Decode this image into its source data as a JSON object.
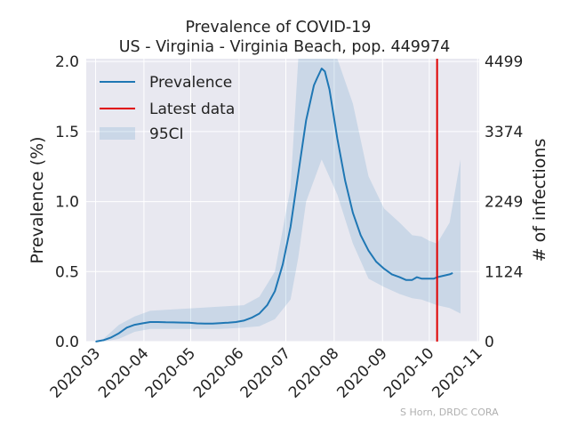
{
  "chart_data": {
    "type": "line",
    "title_line1": "Prevalence of COVID-19",
    "title_line2": "US - Virginia - Virginia Beach, pop. 449974",
    "xlabel": "",
    "ylabel": "Prevalence (%)",
    "ylabel_right": "# of infections",
    "ylim": [
      0,
      2.02
    ],
    "xlim": [
      "2020-02-24",
      "2020-11-02"
    ],
    "x_ticks": [
      "2020-03",
      "2020-04",
      "2020-05",
      "2020-06",
      "2020-07",
      "2020-08",
      "2020-09",
      "2020-10",
      "2020-11"
    ],
    "y_ticks": [
      {
        "value": 0.0,
        "label": "0.0"
      },
      {
        "value": 0.5,
        "label": "0.5"
      },
      {
        "value": 1.0,
        "label": "1.0"
      },
      {
        "value": 1.5,
        "label": "1.5"
      },
      {
        "value": 2.0,
        "label": "2.0"
      }
    ],
    "y_right_ticks": [
      {
        "value": 0.0,
        "label": "0"
      },
      {
        "value": 0.4995,
        "label": "1124"
      },
      {
        "value": 0.9995,
        "label": "2249"
      },
      {
        "value": 1.4998,
        "label": "3374"
      },
      {
        "value": 1.9996,
        "label": "4499"
      }
    ],
    "grid": true,
    "legend_position": "top-left",
    "legend": [
      {
        "label": "Prevalence",
        "kind": "line",
        "color": "#1f77b4"
      },
      {
        "label": "Latest data",
        "kind": "line",
        "color": "#e00000"
      },
      {
        "label": "95CI",
        "kind": "patch",
        "color": "#1f77b4"
      }
    ],
    "latest_data_date": "2020-10-06",
    "colors": {
      "prevalence": "#1f77b4",
      "latest": "#e00000",
      "ci": "#1f77b4",
      "plot_bg": "#e8e8f0",
      "grid": "#ffffff"
    },
    "series": [
      {
        "name": "Prevalence",
        "x": [
          "2020-03-01",
          "2020-03-06",
          "2020-03-11",
          "2020-03-16",
          "2020-03-21",
          "2020-03-26",
          "2020-03-31",
          "2020-04-05",
          "2020-04-10",
          "2020-04-15",
          "2020-04-20",
          "2020-04-25",
          "2020-04-30",
          "2020-05-05",
          "2020-05-10",
          "2020-05-15",
          "2020-05-20",
          "2020-05-25",
          "2020-05-30",
          "2020-06-04",
          "2020-06-09",
          "2020-06-14",
          "2020-06-19",
          "2020-06-24",
          "2020-06-29",
          "2020-07-04",
          "2020-07-09",
          "2020-07-14",
          "2020-07-19",
          "2020-07-21",
          "2020-07-24",
          "2020-07-26",
          "2020-07-29",
          "2020-08-03",
          "2020-08-08",
          "2020-08-13",
          "2020-08-18",
          "2020-08-23",
          "2020-08-28",
          "2020-09-02",
          "2020-09-07",
          "2020-09-12",
          "2020-09-16",
          "2020-09-20",
          "2020-09-23",
          "2020-09-26",
          "2020-10-01",
          "2020-10-04",
          "2020-10-06",
          "2020-10-10",
          "2020-10-14",
          "2020-10-16"
        ],
        "values": [
          0.0,
          0.01,
          0.03,
          0.06,
          0.1,
          0.12,
          0.13,
          0.14,
          0.14,
          0.138,
          0.137,
          0.136,
          0.135,
          0.13,
          0.128,
          0.128,
          0.132,
          0.135,
          0.14,
          0.15,
          0.17,
          0.2,
          0.26,
          0.36,
          0.55,
          0.82,
          1.2,
          1.58,
          1.83,
          1.88,
          1.95,
          1.93,
          1.8,
          1.45,
          1.15,
          0.92,
          0.76,
          0.65,
          0.57,
          0.52,
          0.48,
          0.46,
          0.44,
          0.44,
          0.46,
          0.45,
          0.45,
          0.45,
          0.46,
          0.47,
          0.48,
          0.49
        ]
      }
    ],
    "ci": {
      "x": [
        "2020-03-06",
        "2020-03-16",
        "2020-03-26",
        "2020-04-05",
        "2020-04-20",
        "2020-05-05",
        "2020-05-20",
        "2020-06-04",
        "2020-06-14",
        "2020-06-24",
        "2020-07-04",
        "2020-07-09",
        "2020-07-14",
        "2020-07-24",
        "2020-08-03",
        "2020-08-13",
        "2020-08-23",
        "2020-09-02",
        "2020-09-12",
        "2020-09-20",
        "2020-09-26",
        "2020-10-01",
        "2020-10-06",
        "2020-10-14",
        "2020-10-21"
      ],
      "upper": [
        0.02,
        0.12,
        0.18,
        0.22,
        0.23,
        0.24,
        0.25,
        0.26,
        0.32,
        0.5,
        1.1,
        2.02,
        2.02,
        2.02,
        2.02,
        1.7,
        1.18,
        0.95,
        0.85,
        0.76,
        0.75,
        0.72,
        0.7,
        0.85,
        1.3
      ],
      "lower": [
        0.0,
        0.02,
        0.07,
        0.09,
        0.09,
        0.09,
        0.09,
        0.1,
        0.11,
        0.16,
        0.3,
        0.6,
        1.0,
        1.3,
        1.05,
        0.7,
        0.45,
        0.39,
        0.34,
        0.31,
        0.3,
        0.28,
        0.26,
        0.24,
        0.2
      ]
    },
    "watermark": "S Horn, DRDC CORA"
  }
}
